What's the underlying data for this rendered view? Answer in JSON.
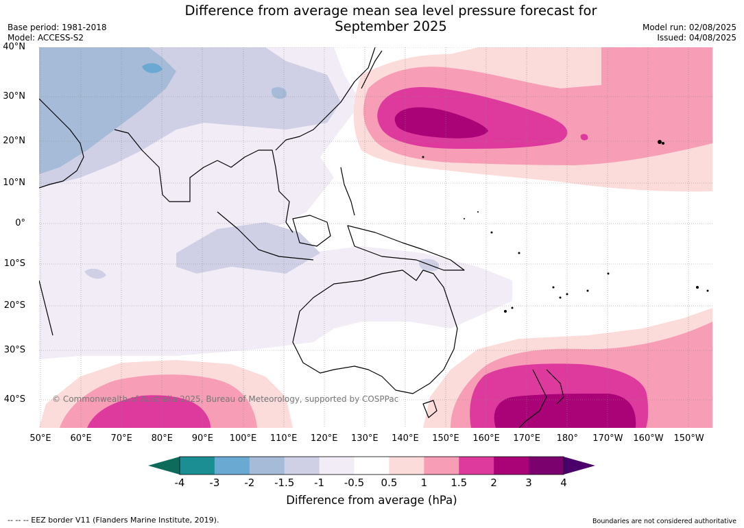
{
  "title_line1": "Difference from average mean sea level pressure forecast for",
  "title_line2": "September 2025",
  "base_period": "Base period: 1981-2018",
  "model": "Model: ACCESS-S2",
  "model_run": "Model run: 02/08/2025",
  "issued": "Issued: 04/08/2025",
  "copyright": "© Commonwealth of Australia 2025, Bureau of Meteorology, supported by COSPPac",
  "map": {
    "lat_labels": [
      "40°N",
      "30°N",
      "20°N",
      "10°N",
      "0°",
      "10°S",
      "20°S",
      "30°S",
      "40°S"
    ],
    "lon_labels": [
      "50°E",
      "60°E",
      "70°E",
      "80°E",
      "90°E",
      "100°E",
      "110°E",
      "120°E",
      "130°E",
      "140°E",
      "150°E",
      "160°E",
      "170°E",
      "180°",
      "170°W",
      "160°W",
      "150°W"
    ],
    "regions": [
      {
        "name": "central-north-pacific-high",
        "level": "3 to 4"
      },
      {
        "name": "tasman-sea-high",
        "level": "3 to 4"
      },
      {
        "name": "southern-indian-ocean-high",
        "level": "2 to 3"
      },
      {
        "name": "tibetan-plateau-low",
        "level": "-3 to -2"
      },
      {
        "name": "middle-east-low",
        "level": "-2 to -1.5"
      }
    ]
  },
  "colorbar": {
    "ticks": [
      "-4",
      "-3",
      "-2",
      "-1.5",
      "-1",
      "-0.5",
      "0.5",
      "1",
      "1.5",
      "2",
      "3",
      "4"
    ],
    "colors": [
      "#1b8e94",
      "#69a9d2",
      "#a6bbd8",
      "#cfd0e5",
      "#f2ecf6",
      "#ffffff",
      "#fcdbdb",
      "#f89db6",
      "#de3a9d",
      "#aa0277",
      "#7b016f"
    ],
    "under_color": "#0d6b5b",
    "over_color": "#4a006a",
    "label": "Difference from average (hPa)"
  },
  "footer_left": "--  --  -- EEZ border V11 (Flanders Marine Institute, 2019).",
  "footer_right": "Boundaries are not considered authoritative"
}
